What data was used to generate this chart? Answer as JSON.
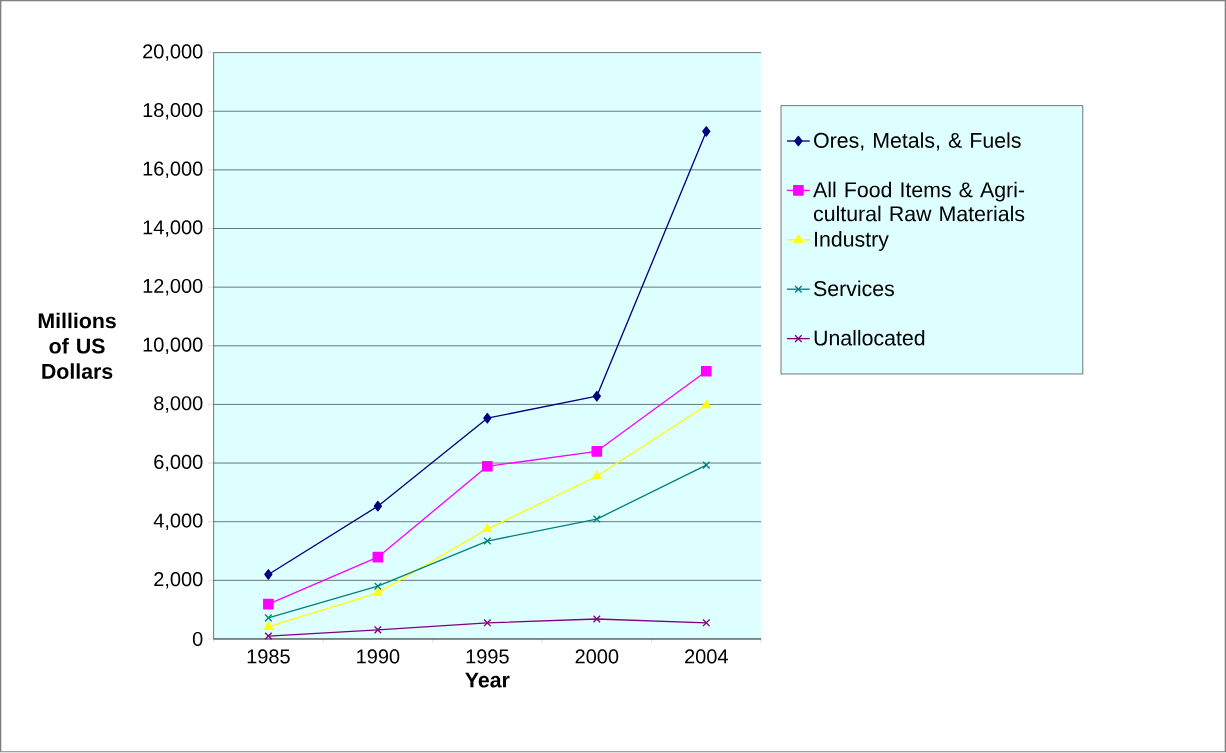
{
  "chart_data": {
    "type": "line",
    "xlabel": "Year",
    "ylabel": "Millions of US Dollars",
    "categories": [
      "1985",
      "1990",
      "1995",
      "2000",
      "2004"
    ],
    "ylim": [
      0,
      20000
    ],
    "yticks": [
      {
        "value": 0,
        "label": "0"
      },
      {
        "value": 2000,
        "label": "2,000"
      },
      {
        "value": 4000,
        "label": "4,000"
      },
      {
        "value": 6000,
        "label": "6,000"
      },
      {
        "value": 8000,
        "label": "8,000"
      },
      {
        "value": 10000,
        "label": "10,000"
      },
      {
        "value": 12000,
        "label": "12,000"
      },
      {
        "value": 14000,
        "label": "14,000"
      },
      {
        "value": 16000,
        "label": "16,000"
      },
      {
        "value": 18000,
        "label": "18,000"
      },
      {
        "value": 20000,
        "label": "20,000"
      }
    ],
    "grid": "y",
    "legend": "right",
    "line_style": "solid",
    "series": [
      {
        "name": "Ores, Metals, & Fuels",
        "color": "#000080",
        "marker": "diamond",
        "values": [
          2200,
          4530,
          7530,
          8280,
          17310
        ]
      },
      {
        "name": "All Food Items & Agri-cultural Raw Materials",
        "color": "#ff00ff",
        "marker": "square",
        "values": [
          1190,
          2790,
          5890,
          6400,
          9130
        ]
      },
      {
        "name": "Industry",
        "color": "#ffff00",
        "marker": "triangle",
        "values": [
          410,
          1570,
          3750,
          5550,
          7970
        ]
      },
      {
        "name": "Services",
        "color": "#008080",
        "marker": "cross",
        "values": [
          720,
          1800,
          3340,
          4090,
          5930
        ]
      },
      {
        "name": "Unallocated",
        "color": "#800080",
        "marker": "cross",
        "values": [
          100,
          310,
          550,
          680,
          550
        ]
      }
    ]
  }
}
